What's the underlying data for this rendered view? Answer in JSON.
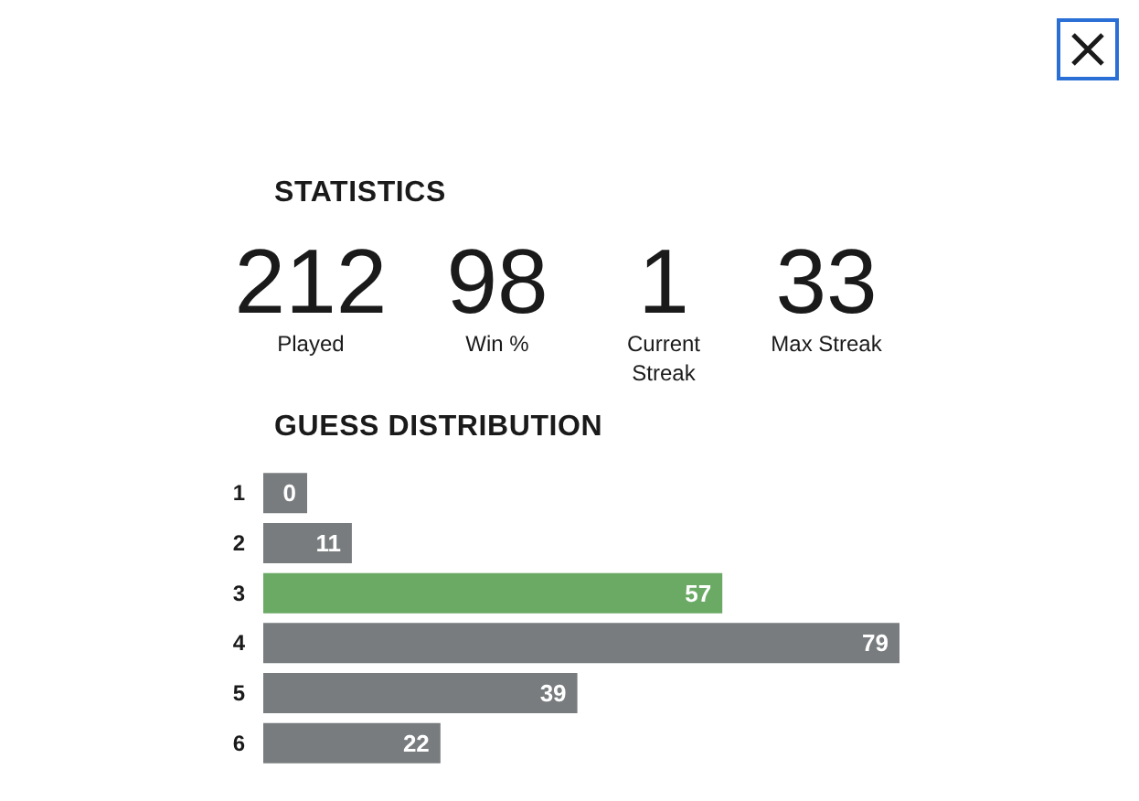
{
  "chart_data": {
    "type": "bar",
    "title": "STATISTICS",
    "subtitle": "GUESS DISTRIBUTION",
    "annotations": [
      "212",
      "Played",
      "98",
      "Win %",
      "1",
      "Current Streak",
      "33",
      "Max Streak"
    ],
    "orientation": "horizontal",
    "categories": [
      "1",
      "2",
      "3",
      "4",
      "5",
      "6"
    ],
    "values": [
      0,
      11,
      57,
      79,
      39,
      22
    ],
    "colors": [
      "#787c7e",
      "#787c7e",
      "#6aaa64",
      "#787c7e",
      "#787c7e",
      "#787c7e"
    ],
    "data_labels": true,
    "tick_labels": "y"
  }
}
